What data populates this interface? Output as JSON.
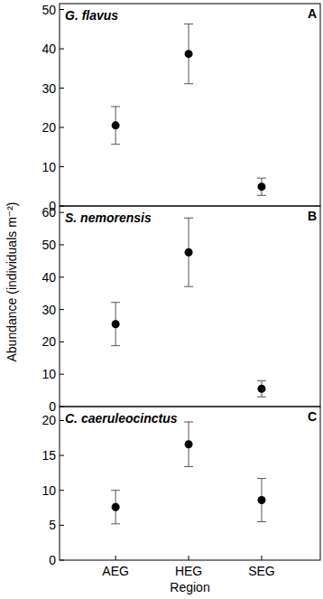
{
  "x_label": "Region",
  "y_label": "Abundance (individuals m⁻²)",
  "chart_data": [
    {
      "type": "scatter",
      "title": "G. flavus",
      "panel": "A",
      "categories": [
        "AEG",
        "HEG",
        "SEG"
      ],
      "values": [
        20.5,
        38.7,
        4.9
      ],
      "errors": [
        4.8,
        7.6,
        2.2
      ],
      "color": "#000000",
      "ylim": [
        0,
        51.5
      ],
      "yticks": [
        0,
        10,
        20,
        30,
        40,
        50
      ]
    },
    {
      "type": "scatter",
      "title": "S. nemorensis",
      "panel": "B",
      "categories": [
        "AEG",
        "HEG",
        "SEG"
      ],
      "values": [
        25.5,
        47.7,
        5.5
      ],
      "errors": [
        6.7,
        10.6,
        2.5
      ],
      "color": "#000000",
      "ylim": [
        0,
        62
      ],
      "yticks": [
        0,
        10,
        20,
        30,
        40,
        50,
        60
      ]
    },
    {
      "type": "scatter",
      "title": "C. caeruleocinctus",
      "panel": "C",
      "categories": [
        "AEG",
        "HEG",
        "SEG"
      ],
      "values": [
        7.6,
        16.6,
        8.6
      ],
      "errors": [
        2.4,
        3.2,
        3.1
      ],
      "color": "#000000",
      "ylim": [
        0,
        22
      ],
      "yticks": [
        0,
        5,
        10,
        15,
        20
      ]
    }
  ]
}
